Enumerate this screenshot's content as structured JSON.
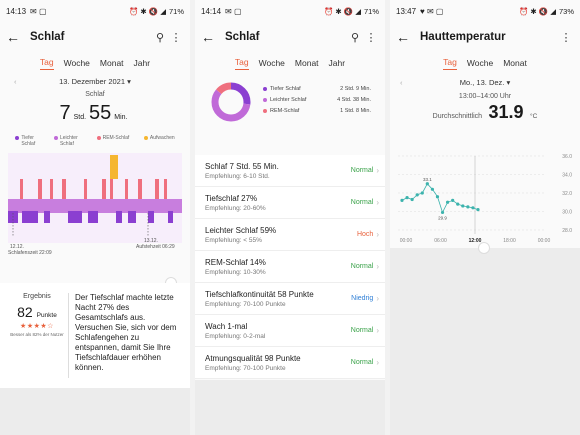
{
  "screens": [
    {
      "status": {
        "time": "14:13",
        "battery": "71%"
      },
      "title": "Schlaf",
      "tabs": [
        "Tag",
        "Woche",
        "Monat",
        "Jahr"
      ],
      "active_tab": "Tag",
      "date": "13. Dezember 2021",
      "subtitle": "Schlaf",
      "duration": {
        "h": "7",
        "h_unit": "Std.",
        "m": "55",
        "m_unit": "Min."
      },
      "legend": [
        {
          "label": "Tiefer Schlaf",
          "color": "#8b3fd1"
        },
        {
          "label": "Leichter Schlaf",
          "color": "#c06ad8"
        },
        {
          "label": "REM-Schlaf",
          "color": "#ef6f7e"
        },
        {
          "label": "Aufwachen",
          "color": "#f5b630"
        }
      ],
      "start_label": "12.12.",
      "start_time": "Schlafenszeit 22:09",
      "end_label": "13.12.",
      "end_time": "Aufstehzeit 06:29",
      "result": {
        "label": "Ergebnis",
        "score": "82",
        "score_unit": "Punkte",
        "stars": "★★★★☆",
        "note": "Besser als 82% der Nutzer",
        "description": "Der Tiefschlaf machte letzte Nacht 27% des Gesamtschlafs aus. Versuchen Sie, sich vor dem Schlafengehen zu entspannen, damit Sie Ihre Tiefschlafdauer erhöhen können."
      }
    },
    {
      "status": {
        "time": "14:14",
        "battery": "71%"
      },
      "title": "Schlaf",
      "tabs": [
        "Tag",
        "Woche",
        "Monat",
        "Jahr"
      ],
      "active_tab": "Tag",
      "legend": [
        {
          "label": "Tiefer Schlaf",
          "value": "2 Std. 9 Min.",
          "color": "#8b3fd1"
        },
        {
          "label": "Leichter Schlaf",
          "value": "4 Std. 38 Min.",
          "color": "#c06ad8"
        },
        {
          "label": "REM-Schlaf",
          "value": "1 Std. 8 Min.",
          "color": "#ef6f7e"
        }
      ],
      "donut_fractions": [
        0.27,
        0.59,
        0.14
      ],
      "items": [
        {
          "title": "Schlaf  7 Std. 55 Min.",
          "sub": "Empfehlung: 6-10 Std.",
          "status": "Normal",
          "color": "#3aa24a"
        },
        {
          "title": "Tiefschlaf  27%",
          "sub": "Empfehlung: 20-60%",
          "status": "Normal",
          "color": "#3aa24a"
        },
        {
          "title": "Leichter Schlaf  59%",
          "sub": "Empfehlung: < 55%",
          "status": "Hoch",
          "color": "#e8613c"
        },
        {
          "title": "REM-Schlaf  14%",
          "sub": "Empfehlung: 10-30%",
          "status": "Normal",
          "color": "#3aa24a"
        },
        {
          "title": "Tiefschlafkontinuität  58 Punkte",
          "sub": "Empfehlung: 70-100 Punkte",
          "status": "Niedrig",
          "color": "#2f7fd6"
        },
        {
          "title": "Wach  1-mal",
          "sub": "Empfehlung: 0-2-mal",
          "status": "Normal",
          "color": "#3aa24a"
        },
        {
          "title": "Atmungsqualität  98 Punkte",
          "sub": "Empfehlung: 70-100 Punkte",
          "status": "Normal",
          "color": "#3aa24a"
        }
      ]
    },
    {
      "status": {
        "time": "13:47",
        "battery": "73%"
      },
      "title": "Hauttemperatur",
      "tabs": [
        "Tag",
        "Woche",
        "Monat"
      ],
      "active_tab": "Tag",
      "date": "Mo., 13. Dez.",
      "time_range": "13:00–14:00 Uhr",
      "avg_label": "Durchschnittlich",
      "avg_value": "31.9",
      "avg_unit": "°C",
      "chart_data": {
        "type": "line",
        "yticks": [
          "36.0",
          "34.0",
          "32.0",
          "30.0",
          "28.0"
        ],
        "ylim": [
          28,
          36
        ],
        "xticks": [
          "00:00",
          "06:00",
          "12:00",
          "18:00",
          "00:00"
        ],
        "highlight_x": "12:00",
        "points": [
          31.2,
          31.5,
          31.3,
          31.8,
          32.0,
          33.0,
          32.4,
          31.6,
          29.9,
          31.0,
          31.2,
          30.8,
          30.6,
          30.5,
          30.4,
          30.2
        ],
        "max_label": "33.1",
        "min_label": "29.9"
      }
    }
  ]
}
